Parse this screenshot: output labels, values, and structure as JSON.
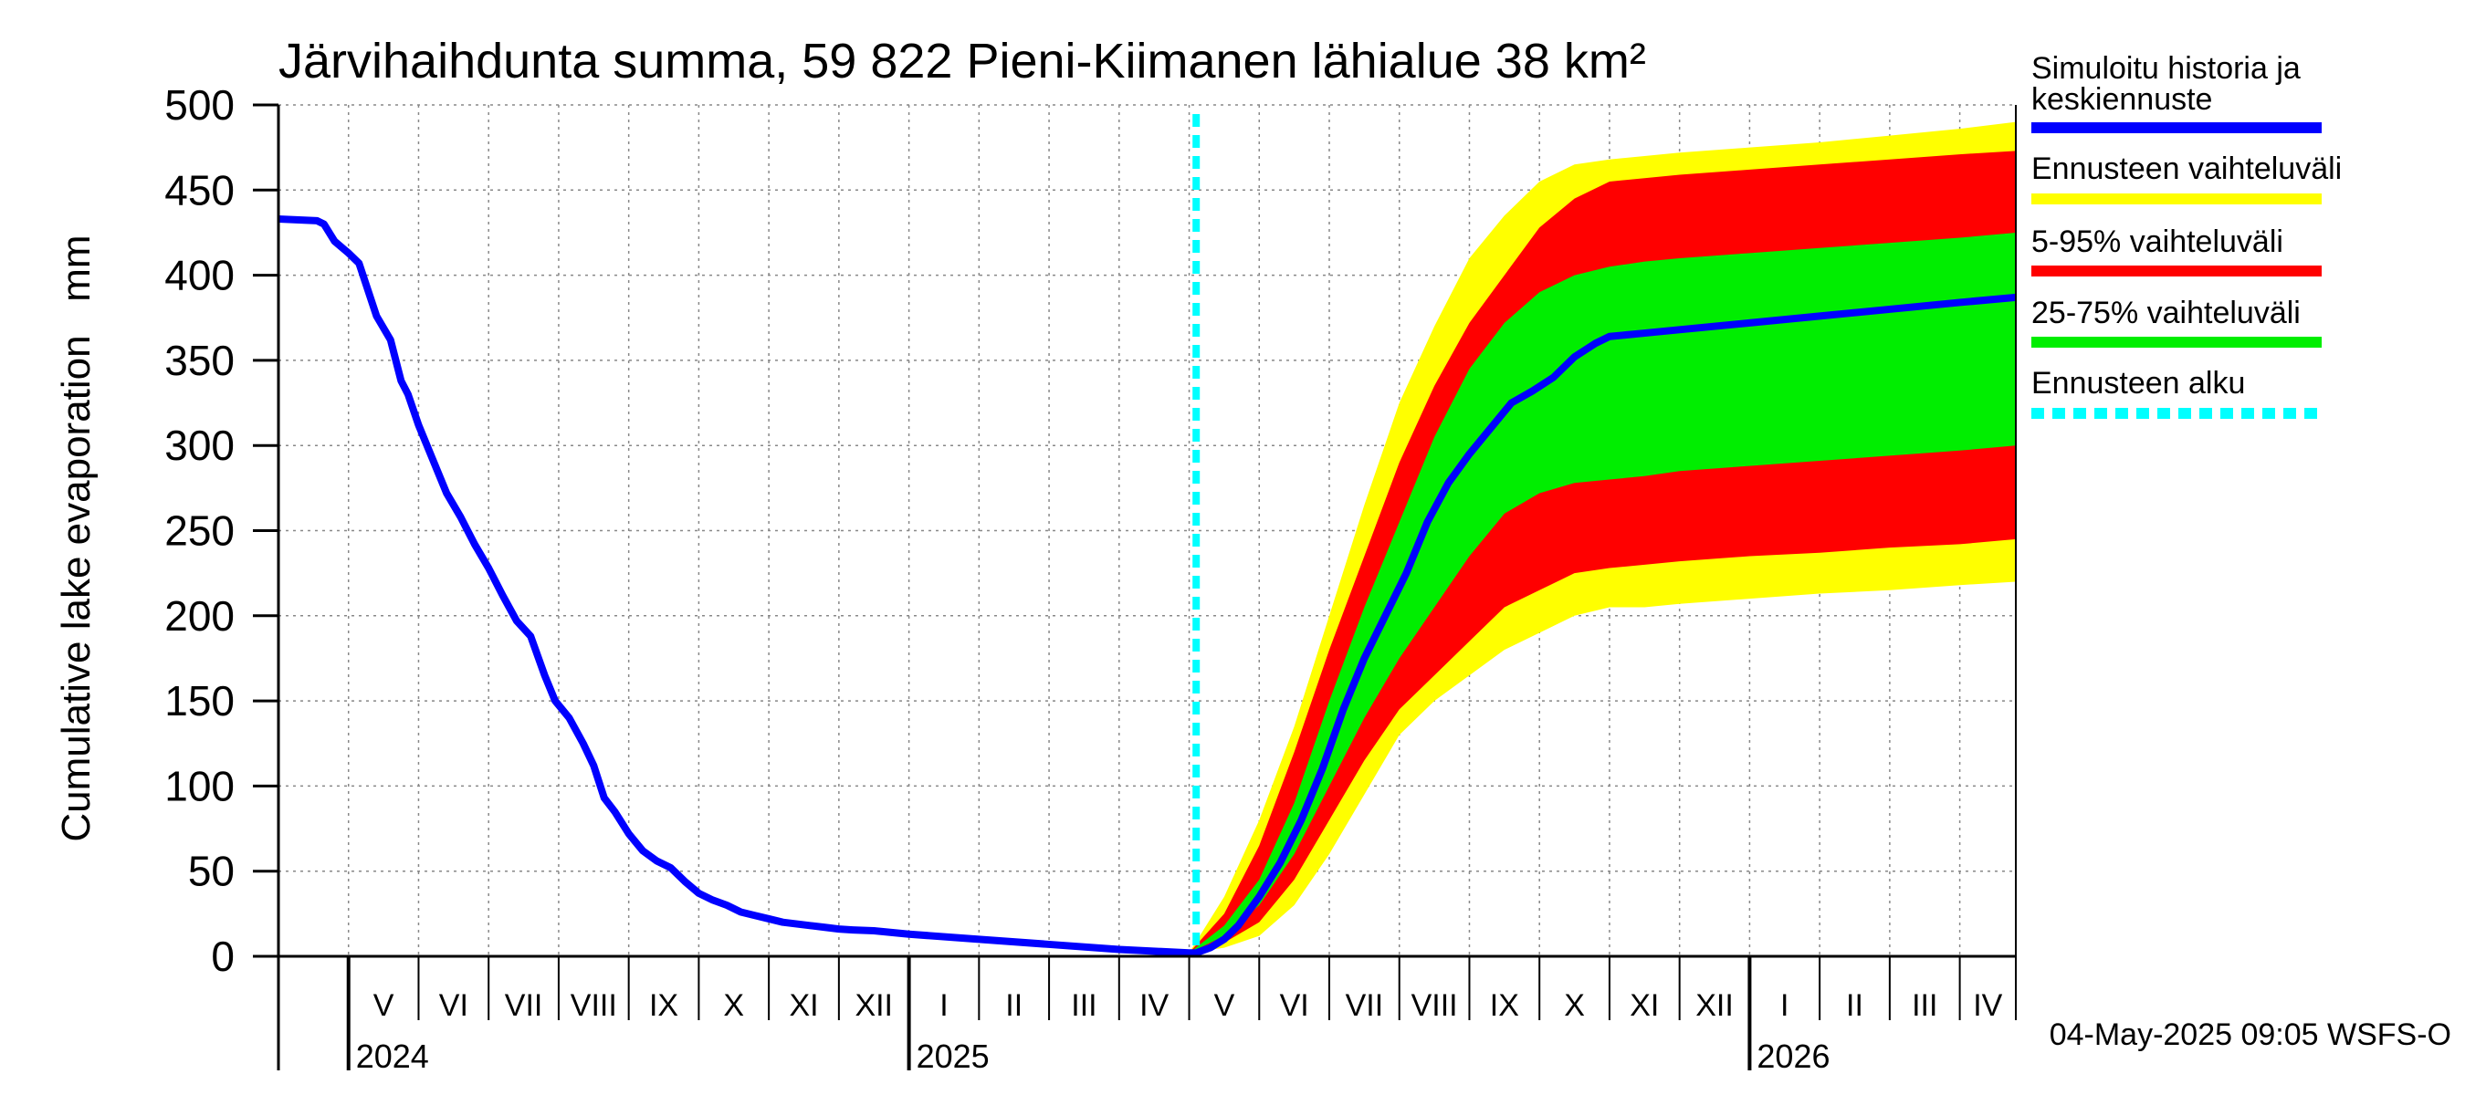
{
  "chart_data": {
    "type": "area",
    "title": "Järvihaihdunta summa, 59 822 Pieni-Kiimanen lähialue 38 km²",
    "ylabel": "Cumulative lake evaporation   mm",
    "xlabel": "",
    "ylim": [
      0,
      500
    ],
    "yticks": [
      0,
      50,
      100,
      150,
      200,
      250,
      300,
      350,
      400,
      450,
      500
    ],
    "grid": true,
    "legend_position": "right",
    "x_unit": "months since 2024-04-01",
    "xlim": [
      0,
      24.8
    ],
    "month_labels": [
      {
        "label": "V",
        "start": 1
      },
      {
        "label": "VI",
        "start": 2
      },
      {
        "label": "VII",
        "start": 3
      },
      {
        "label": "VIII",
        "start": 4
      },
      {
        "label": "IX",
        "start": 5
      },
      {
        "label": "X",
        "start": 6
      },
      {
        "label": "XI",
        "start": 7
      },
      {
        "label": "XII",
        "start": 8
      },
      {
        "label": "I",
        "start": 9
      },
      {
        "label": "II",
        "start": 10
      },
      {
        "label": "III",
        "start": 11
      },
      {
        "label": "IV",
        "start": 12
      },
      {
        "label": "V",
        "start": 13
      },
      {
        "label": "VI",
        "start": 14
      },
      {
        "label": "VII",
        "start": 15
      },
      {
        "label": "VIII",
        "start": 16
      },
      {
        "label": "IX",
        "start": 17
      },
      {
        "label": "X",
        "start": 18
      },
      {
        "label": "XI",
        "start": 19
      },
      {
        "label": "XII",
        "start": 20
      },
      {
        "label": "I",
        "start": 21
      },
      {
        "label": "II",
        "start": 22
      },
      {
        "label": "III",
        "start": 23
      },
      {
        "label": "IV",
        "start": 24
      }
    ],
    "year_labels": [
      {
        "label": "2024",
        "x": 1
      },
      {
        "label": "2025",
        "x": 9
      },
      {
        "label": "2026",
        "x": 21
      }
    ],
    "forecast_start_x": 13.1,
    "series": [
      {
        "name": "Simuloitu historia ja keskiennuste",
        "color": "#0000ff",
        "x": [
          0,
          0.55,
          0.65,
          0.8,
          1.0,
          1.15,
          1.4,
          1.6,
          1.75,
          1.85,
          2.0,
          2.2,
          2.4,
          2.6,
          2.8,
          3.0,
          3.2,
          3.4,
          3.6,
          3.8,
          3.95,
          4.15,
          4.35,
          4.5,
          4.65,
          4.8,
          5.0,
          5.2,
          5.4,
          5.6,
          5.8,
          6.0,
          6.2,
          6.4,
          6.6,
          6.8,
          7.0,
          7.2,
          7.4,
          7.6,
          7.8,
          8.0,
          8.2,
          8.5,
          9.0,
          10.0,
          11.0,
          12.0,
          13.0,
          13.1,
          13.3,
          13.5,
          13.7,
          14.0,
          14.3,
          14.6,
          14.9,
          15.2,
          15.5,
          15.8,
          16.1,
          16.4,
          16.7,
          17.0,
          17.3,
          17.6,
          17.9,
          18.2,
          18.5,
          18.8,
          19.0,
          19.5,
          20.0,
          21.0,
          22.0,
          23.0,
          24.0,
          24.8
        ],
        "values": [
          433,
          432,
          430,
          420,
          413,
          407,
          376,
          362,
          338,
          330,
          312,
          292,
          272,
          258,
          242,
          228,
          212,
          197,
          188,
          165,
          150,
          140,
          125,
          112,
          93,
          85,
          72,
          62,
          56,
          52,
          44,
          37,
          33,
          30,
          26,
          24,
          22,
          20,
          19,
          18,
          17,
          16,
          15.5,
          15,
          13,
          10,
          7,
          4,
          2,
          2,
          5,
          10,
          18,
          35,
          55,
          80,
          110,
          145,
          175,
          200,
          225,
          255,
          278,
          295,
          310,
          325,
          332,
          340,
          352,
          360,
          364,
          366,
          368,
          372,
          376,
          380,
          384,
          387
        ]
      },
      {
        "name": "Ennusteen vaihteluväli",
        "color": "#ffff00",
        "x": [
          13.0,
          13.5,
          14.0,
          14.5,
          15.0,
          15.5,
          16.0,
          16.5,
          17.0,
          17.5,
          18.0,
          18.5,
          19.0,
          19.5,
          20.0,
          21.0,
          22.0,
          23.0,
          24.0,
          24.8
        ],
        "upper": [
          2,
          35,
          80,
          135,
          200,
          265,
          325,
          370,
          410,
          435,
          455,
          465,
          468,
          470,
          472,
          475,
          478,
          482,
          486,
          490
        ],
        "lower": [
          2,
          5,
          12,
          30,
          60,
          95,
          130,
          150,
          165,
          180,
          190,
          200,
          205,
          205,
          207,
          210,
          213,
          215,
          218,
          220
        ]
      },
      {
        "name": "5-95% vaihteluväli",
        "color": "#ff0000",
        "x": [
          13.0,
          13.5,
          14.0,
          14.5,
          15.0,
          15.5,
          16.0,
          16.5,
          17.0,
          17.5,
          18.0,
          18.5,
          19.0,
          19.5,
          20.0,
          21.0,
          22.0,
          23.0,
          24.0,
          24.8
        ],
        "upper": [
          2,
          25,
          65,
          120,
          180,
          235,
          290,
          335,
          372,
          400,
          428,
          445,
          455,
          457,
          459,
          462,
          465,
          468,
          471,
          473
        ],
        "lower": [
          2,
          8,
          20,
          45,
          80,
          115,
          145,
          165,
          185,
          205,
          215,
          225,
          228,
          230,
          232,
          235,
          237,
          240,
          242,
          245
        ]
      },
      {
        "name": "25-75% vaihteluväli",
        "color": "#00ee00",
        "x": [
          13.0,
          13.5,
          14.0,
          14.5,
          15.0,
          15.5,
          16.0,
          16.5,
          17.0,
          17.5,
          18.0,
          18.5,
          19.0,
          19.5,
          20.0,
          21.0,
          22.0,
          23.0,
          24.0,
          24.8
        ],
        "upper": [
          2,
          18,
          45,
          90,
          150,
          205,
          255,
          305,
          345,
          372,
          390,
          400,
          405,
          408,
          410,
          413,
          416,
          419,
          422,
          425
        ],
        "lower": [
          2,
          12,
          30,
          60,
          100,
          140,
          175,
          205,
          235,
          260,
          272,
          278,
          280,
          282,
          285,
          288,
          291,
          294,
          297,
          300
        ]
      }
    ],
    "legend": [
      {
        "label": "Simuloitu historia ja keskiennuste",
        "color": "#0000ff",
        "style": "solid"
      },
      {
        "label": "Ennusteen vaihteluväli",
        "color": "#ffff00",
        "style": "solid"
      },
      {
        "label": "5-95% vaihteluväli",
        "color": "#ff0000",
        "style": "solid"
      },
      {
        "label": "25-75% vaihteluväli",
        "color": "#00ee00",
        "style": "solid"
      },
      {
        "label": "Ennusteen alku",
        "color": "#00ffff",
        "style": "dashed"
      }
    ],
    "footer": "04-May-2025 09:05 WSFS-O"
  }
}
